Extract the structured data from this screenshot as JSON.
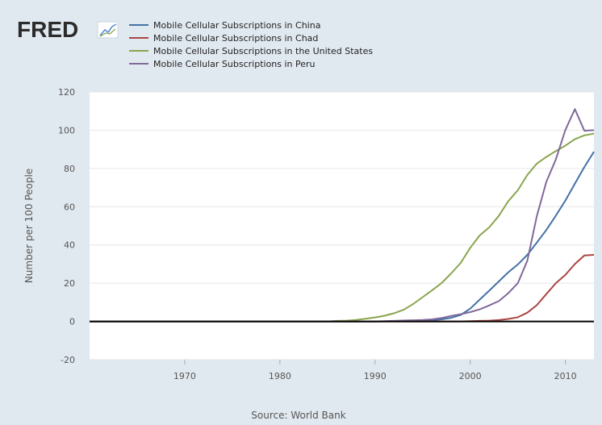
{
  "logo": {
    "text": "FRED",
    "icon": "line-graph-icon"
  },
  "source": "Source: World Bank",
  "colors": {
    "background": "#e1e9f0",
    "plot_background": "#ffffff",
    "grid": "#e6e6e6",
    "zero_line": "#000000",
    "China": "#4572a7",
    "Chad": "#aa4643",
    "United States": "#89a54e",
    "Peru": "#80699b"
  },
  "chart_data": {
    "type": "line",
    "title": "",
    "xlabel": "",
    "ylabel": "Number per 100 People",
    "xlim": [
      1960,
      2013
    ],
    "ylim": [
      -20,
      120
    ],
    "xticks": [
      1970,
      1980,
      1990,
      2000,
      2010
    ],
    "yticks": [
      -20,
      0,
      20,
      40,
      60,
      80,
      100,
      120
    ],
    "grid": true,
    "legend_position": "top-left",
    "series": [
      {
        "name": "Mobile Cellular Subscriptions in China",
        "color": "#4572a7",
        "x": [
          1960,
          1986,
          1990,
          1995,
          1997,
          1998,
          1999,
          2000,
          2001,
          2002,
          2003,
          2004,
          2005,
          2006,
          2007,
          2008,
          2009,
          2010,
          2011,
          2012,
          2013
        ],
        "y": [
          0,
          0,
          0,
          0.3,
          1.1,
          1.9,
          3.4,
          6.7,
          11.4,
          16.1,
          20.9,
          25.7,
          29.8,
          34.8,
          41.2,
          47.8,
          55.3,
          63.2,
          72.0,
          80.8,
          88.7
        ]
      },
      {
        "name": "Mobile Cellular Subscriptions in Chad",
        "color": "#aa4643",
        "x": [
          1960,
          1999,
          2000,
          2001,
          2002,
          2003,
          2004,
          2005,
          2006,
          2007,
          2008,
          2009,
          2010,
          2011,
          2012,
          2013
        ],
        "y": [
          0,
          0,
          0.1,
          0.3,
          0.4,
          0.7,
          1.3,
          2.2,
          4.6,
          8.5,
          14.3,
          20.0,
          24.3,
          30.0,
          34.5,
          34.8
        ]
      },
      {
        "name": "Mobile Cellular Subscriptions in the United States",
        "color": "#89a54e",
        "x": [
          1960,
          1985,
          1986,
          1987,
          1988,
          1989,
          1990,
          1991,
          1992,
          1993,
          1994,
          1995,
          1996,
          1997,
          1998,
          1999,
          2000,
          2001,
          2002,
          2003,
          2004,
          2005,
          2006,
          2007,
          2008,
          2009,
          2010,
          2011,
          2012,
          2013
        ],
        "y": [
          0,
          0,
          0.3,
          0.4,
          0.8,
          1.4,
          2.1,
          3.0,
          4.3,
          6.1,
          9.1,
          12.7,
          16.3,
          20.1,
          25.1,
          30.6,
          38.5,
          45.0,
          49.2,
          55.2,
          62.9,
          68.6,
          76.6,
          82.5,
          86.0,
          89.1,
          91.9,
          95.3,
          97.3,
          98.2
        ]
      },
      {
        "name": "Mobile Cellular Subscriptions in Peru",
        "color": "#80699b",
        "x": [
          1960,
          1990,
          1995,
          1996,
          1997,
          1998,
          1999,
          2000,
          2001,
          2002,
          2003,
          2004,
          2005,
          2006,
          2007,
          2008,
          2009,
          2010,
          2011,
          2012,
          2013
        ],
        "y": [
          0,
          0,
          0.8,
          1.1,
          1.8,
          2.9,
          3.8,
          4.9,
          6.3,
          8.4,
          10.6,
          14.8,
          20.0,
          31.8,
          55.0,
          73.0,
          84.7,
          100.1,
          111.0,
          99.7,
          100.0
        ]
      }
    ]
  }
}
